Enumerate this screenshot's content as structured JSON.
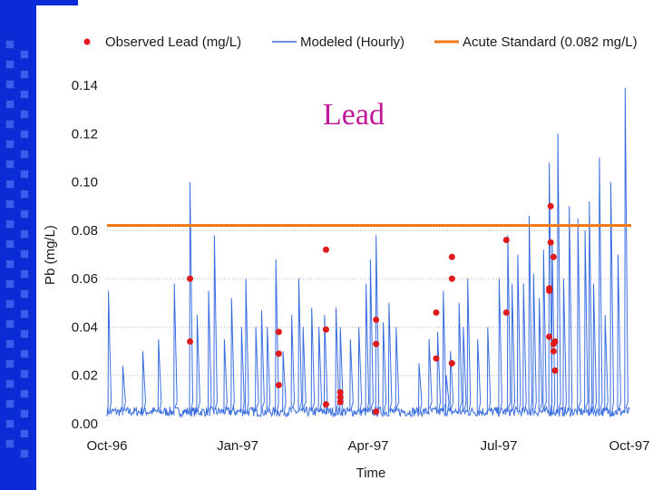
{
  "chart_data": {
    "type": "line",
    "title": "Lead",
    "xlabel": "Time",
    "ylabel": "Pb (mg/L)",
    "ylim": [
      0,
      0.14
    ],
    "y_ticks": [
      "0.00",
      "0.02",
      "0.04",
      "0.06",
      "0.08",
      "0.10",
      "0.12",
      "0.14"
    ],
    "x_ticks": [
      "Oct-96",
      "Jan-97",
      "Apr-97",
      "Jul-97",
      "Oct-97"
    ],
    "grid": "horizontal dotted",
    "legend_position": "top",
    "colors": {
      "observed": "#e0191b",
      "modeled": "#3a6ee0",
      "standard": "#f07a1a"
    },
    "series": [
      {
        "name": "Observed Lead (mg/L)",
        "kind": "scatter",
        "x": [
          "1996-11-28",
          "1996-11-28",
          "1997-01-29",
          "1997-01-29",
          "1997-01-29",
          "1997-03-03",
          "1997-03-03",
          "1997-03-03",
          "1997-03-13",
          "1997-03-13",
          "1997-03-13",
          "1997-04-07",
          "1997-04-07",
          "1997-04-07",
          "1997-05-19",
          "1997-05-19",
          "1997-05-30",
          "1997-05-30",
          "1997-05-30",
          "1997-07-07",
          "1997-07-07",
          "1997-08-06",
          "1997-08-06",
          "1997-08-06",
          "1997-08-07",
          "1997-08-07",
          "1997-08-09",
          "1997-08-09",
          "1997-08-09",
          "1997-08-10",
          "1997-08-10",
          "1997-08-10"
        ],
        "y": [
          0.06,
          0.034,
          0.038,
          0.029,
          0.016,
          0.072,
          0.039,
          0.008,
          0.013,
          0.011,
          0.009,
          0.043,
          0.033,
          0.005,
          0.046,
          0.027,
          0.069,
          0.06,
          0.025,
          0.076,
          0.046,
          0.056,
          0.055,
          0.036,
          0.09,
          0.075,
          0.069,
          0.033,
          0.03,
          0.022,
          0.034,
          0.034
        ]
      },
      {
        "name": "Modeled (Hourly)",
        "kind": "line",
        "baseline": 0.005,
        "peaks": [
          {
            "x": "1996-10-02",
            "y": 0.055
          },
          {
            "x": "1996-10-12",
            "y": 0.024
          },
          {
            "x": "1996-10-26",
            "y": 0.03
          },
          {
            "x": "1996-11-06",
            "y": 0.035
          },
          {
            "x": "1996-11-17",
            "y": 0.058
          },
          {
            "x": "1996-11-28",
            "y": 0.1
          },
          {
            "x": "1996-12-03",
            "y": 0.045
          },
          {
            "x": "1996-12-11",
            "y": 0.055
          },
          {
            "x": "1996-12-15",
            "y": 0.078
          },
          {
            "x": "1996-12-22",
            "y": 0.035
          },
          {
            "x": "1996-12-27",
            "y": 0.052
          },
          {
            "x": "1997-01-03",
            "y": 0.04
          },
          {
            "x": "1997-01-06",
            "y": 0.06
          },
          {
            "x": "1997-01-13",
            "y": 0.04
          },
          {
            "x": "1997-01-17",
            "y": 0.047
          },
          {
            "x": "1997-01-21",
            "y": 0.04
          },
          {
            "x": "1997-01-27",
            "y": 0.068
          },
          {
            "x": "1997-02-01",
            "y": 0.03
          },
          {
            "x": "1997-02-07",
            "y": 0.045
          },
          {
            "x": "1997-02-12",
            "y": 0.06
          },
          {
            "x": "1997-02-15",
            "y": 0.04
          },
          {
            "x": "1997-02-21",
            "y": 0.048
          },
          {
            "x": "1997-02-26",
            "y": 0.04
          },
          {
            "x": "1997-03-02",
            "y": 0.045
          },
          {
            "x": "1997-03-10",
            "y": 0.048
          },
          {
            "x": "1997-03-13",
            "y": 0.04
          },
          {
            "x": "1997-03-20",
            "y": 0.035
          },
          {
            "x": "1997-03-26",
            "y": 0.04
          },
          {
            "x": "1997-03-31",
            "y": 0.058
          },
          {
            "x": "1997-04-03",
            "y": 0.068
          },
          {
            "x": "1997-04-07",
            "y": 0.078
          },
          {
            "x": "1997-04-12",
            "y": 0.042
          },
          {
            "x": "1997-04-16",
            "y": 0.05
          },
          {
            "x": "1997-04-21",
            "y": 0.04
          },
          {
            "x": "1997-05-07",
            "y": 0.025
          },
          {
            "x": "1997-05-14",
            "y": 0.035
          },
          {
            "x": "1997-05-20",
            "y": 0.038
          },
          {
            "x": "1997-05-24",
            "y": 0.055
          },
          {
            "x": "1997-05-26",
            "y": 0.02
          },
          {
            "x": "1997-05-29",
            "y": 0.03
          },
          {
            "x": "1997-06-04",
            "y": 0.05
          },
          {
            "x": "1997-06-07",
            "y": 0.04
          },
          {
            "x": "1997-06-10",
            "y": 0.06
          },
          {
            "x": "1997-06-17",
            "y": 0.035
          },
          {
            "x": "1997-06-24",
            "y": 0.04
          },
          {
            "x": "1997-07-02",
            "y": 0.06
          },
          {
            "x": "1997-07-08",
            "y": 0.078
          },
          {
            "x": "1997-07-11",
            "y": 0.058
          },
          {
            "x": "1997-07-15",
            "y": 0.07
          },
          {
            "x": "1997-07-19",
            "y": 0.058
          },
          {
            "x": "1997-07-23",
            "y": 0.086
          },
          {
            "x": "1997-07-26",
            "y": 0.062
          },
          {
            "x": "1997-07-30",
            "y": 0.052
          },
          {
            "x": "1997-08-02",
            "y": 0.072
          },
          {
            "x": "1997-08-06",
            "y": 0.108
          },
          {
            "x": "1997-08-08",
            "y": 0.075
          },
          {
            "x": "1997-08-12",
            "y": 0.12
          },
          {
            "x": "1997-08-16",
            "y": 0.06
          },
          {
            "x": "1997-08-20",
            "y": 0.09
          },
          {
            "x": "1997-08-26",
            "y": 0.085
          },
          {
            "x": "1997-08-31",
            "y": 0.08
          },
          {
            "x": "1997-09-03",
            "y": 0.092
          },
          {
            "x": "1997-09-06",
            "y": 0.058
          },
          {
            "x": "1997-09-10",
            "y": 0.11
          },
          {
            "x": "1997-09-14",
            "y": 0.045
          },
          {
            "x": "1997-09-18",
            "y": 0.1
          },
          {
            "x": "1997-09-23",
            "y": 0.07
          },
          {
            "x": "1997-09-28",
            "y": 0.139
          }
        ]
      },
      {
        "name": "Acute Standard (0.082 mg/L)",
        "kind": "hline",
        "y": 0.082
      }
    ]
  }
}
